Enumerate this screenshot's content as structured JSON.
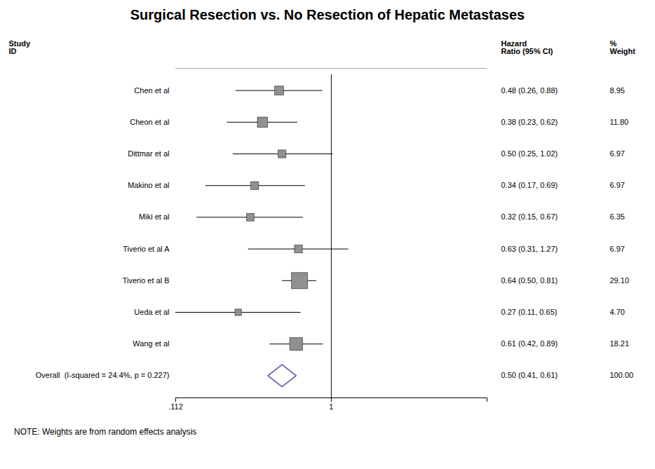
{
  "chart_data": {
    "type": "forest",
    "title": "Surgical Resection vs. No Resection of Hepatic Metastases",
    "note": "NOTE: Weights are from random effects analysis",
    "column_headers": [
      [
        "Study",
        "ID"
      ],
      [
        "Hazard",
        "Ratio (95% CI)"
      ],
      [
        "%",
        "Weight"
      ]
    ],
    "categories": [
      "Chen et al",
      "Cheon et al",
      "Dittmar et al",
      "Makino et al",
      "Miki et al",
      "Tiverio et al A",
      "Tiverio et al B",
      "Ueda et al",
      "Wang et al"
    ],
    "values": [
      0.48,
      0.38,
      0.5,
      0.34,
      0.32,
      0.63,
      0.64,
      0.27,
      0.61
    ],
    "ci_lo": [
      0.26,
      0.23,
      0.25,
      0.17,
      0.15,
      0.31,
      0.5,
      0.11,
      0.42
    ],
    "ci_hi": [
      0.88,
      0.62,
      1.02,
      0.69,
      0.67,
      1.27,
      0.81,
      0.65,
      0.89
    ],
    "value_labels": [
      "0.48 (0.26, 0.88)",
      "0.38 (0.23, 0.62)",
      "0.50 (0.25, 1.02)",
      "0.34 (0.17, 0.69)",
      "0.32 (0.15, 0.67)",
      "0.63 (0.31, 1.27)",
      "0.64 (0.50, 0.81)",
      "0.27 (0.11, 0.65)",
      "0.61 (0.42, 0.89)"
    ],
    "weights": [
      8.95,
      11.8,
      6.97,
      6.97,
      6.35,
      6.97,
      29.1,
      4.7,
      18.21
    ],
    "weight_labels": [
      "8.95",
      "11.80",
      "6.97",
      "6.97",
      "6.35",
      "6.97",
      "29.10",
      "4.70",
      "18.21"
    ],
    "overall": {
      "label": "Overall  (I-squared = 24.4%, p = 0.227)",
      "value": 0.5,
      "ci_lo": 0.41,
      "ci_hi": 0.61,
      "value_label": "0.50 (0.41, 0.61)",
      "weight_label": "100.00",
      "color": "#5555aa"
    },
    "reference_line": 1,
    "color": "#909090",
    "marker": "square",
    "log": "x",
    "xlim": [
      0.112,
      8.95
    ],
    "xticks": [
      {
        "value": 0.112,
        "label": ".112"
      },
      1,
      8.95
    ],
    "grid": false,
    "data_labels": true
  }
}
